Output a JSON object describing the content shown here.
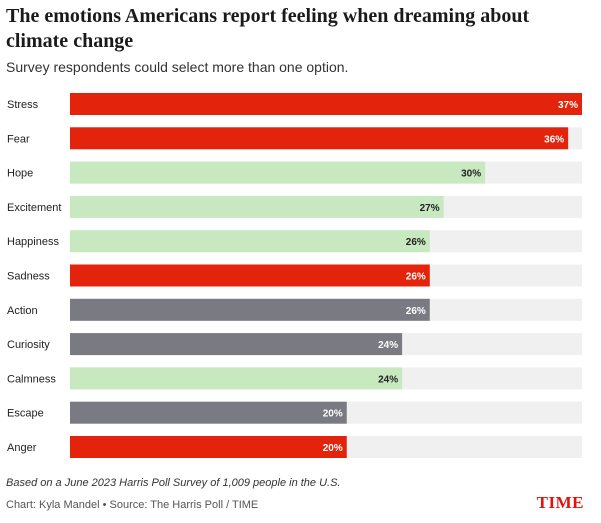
{
  "chart_data": {
    "type": "bar",
    "orientation": "horizontal",
    "title": "The emotions Americans report feeling when dreaming about climate change",
    "subtitle": "Survey respondents could select more than one option.",
    "categories": [
      "Stress",
      "Fear",
      "Hope",
      "Excitement",
      "Happiness",
      "Sadness",
      "Action",
      "Curiosity",
      "Calmness",
      "Escape",
      "Anger"
    ],
    "values": [
      37,
      36,
      30,
      27,
      26,
      26,
      26,
      24,
      24,
      20,
      20
    ],
    "value_labels": [
      "37%",
      "36%",
      "30%",
      "27%",
      "26%",
      "26%",
      "26%",
      "24%",
      "24%",
      "20%",
      "20%"
    ],
    "groups": [
      "negative",
      "negative",
      "positive",
      "positive",
      "positive",
      "negative",
      "neutral",
      "neutral",
      "positive",
      "neutral",
      "negative"
    ],
    "xlim": [
      0,
      37
    ],
    "grid": false,
    "colors": {
      "negative": "#e3230b",
      "positive": "#c8e8c0",
      "neutral": "#7a7a82",
      "track": "#f0f0f0",
      "label_dark_bg": "#ffffff",
      "label_light_bg": "#222222"
    }
  },
  "note": "Based on a June 2023 Harris Poll Survey of 1,009 people in the U.S.",
  "credit": "Chart: Kyla Mandel • Source: The Harris Poll / TIME",
  "brand": "TIME"
}
